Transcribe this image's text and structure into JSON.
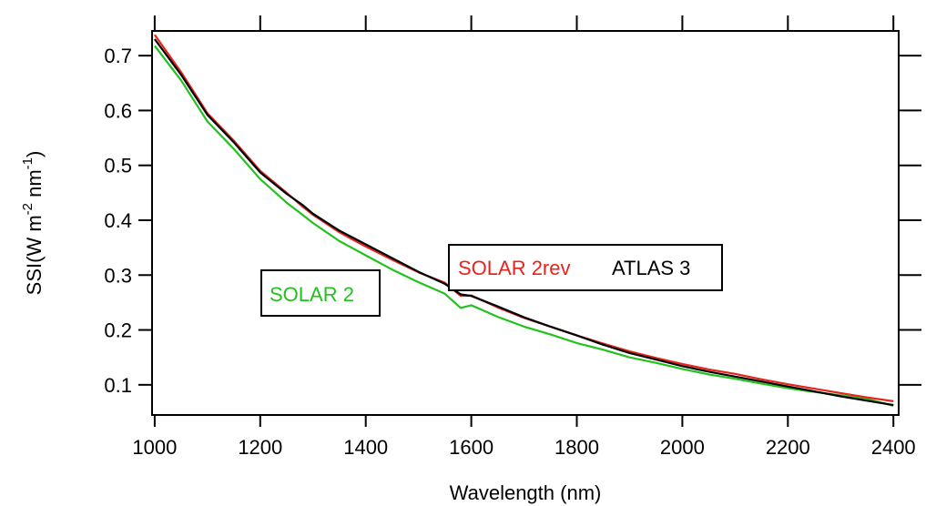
{
  "chart_data": {
    "type": "line",
    "title": "",
    "xlabel": "Wavelength (nm)",
    "ylabel": {
      "base": "SSI(W m",
      "sup1": "-2",
      "mid": " nm",
      "sup2": "-1",
      "close": ")"
    },
    "xlim": [
      995,
      2410
    ],
    "ylim": [
      0.045,
      0.745
    ],
    "xticks": [
      1000,
      1200,
      1400,
      1600,
      1800,
      2000,
      2200,
      2400
    ],
    "yticks": [
      0.1,
      0.2,
      0.3,
      0.4,
      0.5,
      0.6,
      0.7
    ],
    "xtick_labels": [
      "1000",
      "1200",
      "1400",
      "1600",
      "1800",
      "2000",
      "2200",
      "2400"
    ],
    "ytick_labels": [
      "0.1",
      "0.2",
      "0.3",
      "0.4",
      "0.5",
      "0.6",
      "0.7"
    ],
    "grid": false,
    "series": [
      {
        "name": "SOLAR 2",
        "color": "#22c21e",
        "x": [
          1000,
          1050,
          1100,
          1150,
          1200,
          1250,
          1280,
          1300,
          1350,
          1400,
          1450,
          1500,
          1550,
          1580,
          1600,
          1650,
          1700,
          1750,
          1800,
          1850,
          1900,
          1950,
          2000,
          2050,
          2100,
          2150,
          2200,
          2250,
          2300,
          2350,
          2400
        ],
        "y": [
          0.718,
          0.655,
          0.58,
          0.53,
          0.475,
          0.432,
          0.41,
          0.395,
          0.362,
          0.336,
          0.31,
          0.287,
          0.266,
          0.24,
          0.245,
          0.224,
          0.206,
          0.192,
          0.176,
          0.164,
          0.15,
          0.14,
          0.129,
          0.119,
          0.111,
          0.102,
          0.094,
          0.087,
          0.081,
          0.074,
          0.062
        ]
      },
      {
        "name": "SOLAR 2rev",
        "color": "#e8231c",
        "x": [
          1000,
          1050,
          1100,
          1150,
          1200,
          1250,
          1280,
          1300,
          1350,
          1400,
          1450,
          1500,
          1550,
          1580,
          1600,
          1650,
          1700,
          1750,
          1800,
          1850,
          1900,
          1950,
          2000,
          2050,
          2100,
          2150,
          2200,
          2250,
          2300,
          2350,
          2400
        ],
        "y": [
          0.738,
          0.67,
          0.595,
          0.545,
          0.49,
          0.45,
          0.425,
          0.41,
          0.378,
          0.352,
          0.328,
          0.305,
          0.286,
          0.262,
          0.263,
          0.241,
          0.222,
          0.206,
          0.19,
          0.175,
          0.161,
          0.149,
          0.138,
          0.128,
          0.12,
          0.11,
          0.101,
          0.093,
          0.085,
          0.077,
          0.07
        ]
      },
      {
        "name": "ATLAS 3",
        "color": "#000000",
        "x": [
          1000,
          1050,
          1100,
          1150,
          1200,
          1250,
          1280,
          1300,
          1350,
          1400,
          1450,
          1500,
          1550,
          1580,
          1600,
          1650,
          1700,
          1750,
          1800,
          1850,
          1900,
          1950,
          2000,
          2050,
          2100,
          2150,
          2200,
          2250,
          2300,
          2350,
          2400
        ],
        "y": [
          0.73,
          0.665,
          0.592,
          0.542,
          0.487,
          0.448,
          0.428,
          0.412,
          0.381,
          0.356,
          0.331,
          0.306,
          0.284,
          0.265,
          0.262,
          0.243,
          0.223,
          0.206,
          0.19,
          0.173,
          0.158,
          0.146,
          0.134,
          0.124,
          0.115,
          0.106,
          0.097,
          0.088,
          0.079,
          0.071,
          0.063
        ]
      }
    ],
    "legend_boxes": [
      {
        "entries": [
          "SOLAR 2"
        ]
      },
      {
        "entries": [
          "SOLAR 2rev",
          "ATLAS 3"
        ]
      }
    ]
  }
}
